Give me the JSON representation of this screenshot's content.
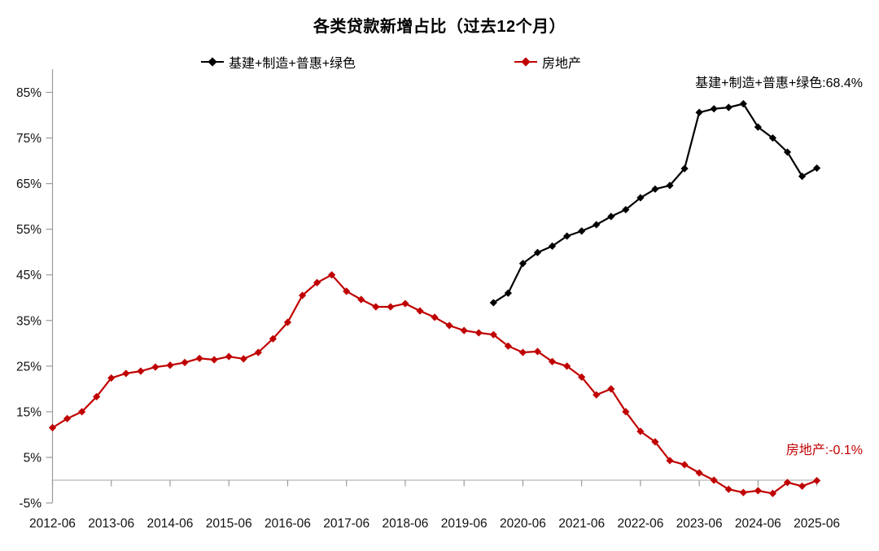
{
  "chart_data": {
    "type": "line",
    "title": "各类贷款新增占比（过去12个月）",
    "legend_position": "top",
    "grid": "zero-line-only",
    "x": [
      "2012-06",
      "2012-09",
      "2012-12",
      "2013-03",
      "2013-06",
      "2013-09",
      "2013-12",
      "2014-03",
      "2014-06",
      "2014-09",
      "2014-12",
      "2015-03",
      "2015-06",
      "2015-09",
      "2015-12",
      "2016-03",
      "2016-06",
      "2016-09",
      "2016-12",
      "2017-03",
      "2017-06",
      "2017-09",
      "2017-12",
      "2018-03",
      "2018-06",
      "2018-09",
      "2018-12",
      "2019-03",
      "2019-06",
      "2019-09",
      "2019-12",
      "2020-03",
      "2020-06",
      "2020-09",
      "2020-12",
      "2021-03",
      "2021-06",
      "2021-09",
      "2021-12",
      "2022-03",
      "2022-06",
      "2022-09",
      "2022-12",
      "2023-03",
      "2023-06",
      "2023-09",
      "2023-12",
      "2024-03",
      "2024-06",
      "2024-09",
      "2024-12",
      "2025-03",
      "2025-06"
    ],
    "x_tick_labels": [
      "2012-06",
      "2013-06",
      "2014-06",
      "2015-06",
      "2016-06",
      "2017-06",
      "2018-06",
      "2019-06",
      "2020-06",
      "2021-06",
      "2022-06",
      "2023-06",
      "2024-06",
      "2025-06"
    ],
    "x_tick_step": 4,
    "ylim": [
      -5,
      90
    ],
    "yticks": [
      -5,
      5,
      15,
      25,
      35,
      45,
      55,
      65,
      75,
      85
    ],
    "ytick_labels": [
      "-5%",
      "5%",
      "15%",
      "25%",
      "35%",
      "45%",
      "55%",
      "65%",
      "75%",
      "85%"
    ],
    "series": [
      {
        "key": "infra-mfg-inclusive-green",
        "name": "基建+制造+普惠+绿色",
        "color": "#000000",
        "marker": "diamond",
        "start_index": 30,
        "values": [
          38.9,
          41.0,
          47.5,
          49.9,
          51.3,
          53.5,
          54.6,
          56.0,
          57.8,
          59.3,
          61.9,
          63.8,
          64.6,
          68.3,
          80.6,
          81.4,
          81.7,
          82.5,
          77.4,
          75.0,
          71.9,
          66.6,
          68.4
        ]
      },
      {
        "key": "real-estate",
        "name": "房地产",
        "color": "#C00000",
        "marker": "diamond",
        "start_index": 0,
        "values": [
          11.5,
          13.5,
          15.0,
          18.3,
          22.4,
          23.4,
          23.9,
          24.8,
          25.2,
          25.8,
          26.7,
          26.4,
          27.1,
          26.6,
          28.0,
          31.0,
          34.6,
          40.5,
          43.3,
          45.0,
          41.4,
          39.6,
          38.0,
          38.0,
          38.7,
          37.1,
          35.7,
          33.9,
          32.8,
          32.3,
          31.9,
          29.4,
          28.0,
          28.2,
          26.0,
          25.0,
          22.6,
          18.7,
          20.0,
          15.0,
          10.7,
          8.4,
          4.3,
          3.4,
          1.6,
          0.0,
          -2.0,
          -2.7,
          -2.3,
          -2.9,
          -0.5,
          -1.3,
          -0.1
        ]
      }
    ],
    "end_labels": [
      {
        "series_key": "infra-mfg-inclusive-green",
        "text": "基建+制造+普惠+绿色:68.4%",
        "value": 68.4,
        "color": "#000000"
      },
      {
        "series_key": "real-estate",
        "text": "房地产:-0.1%",
        "value": -0.1,
        "color": "#C00000"
      }
    ]
  }
}
